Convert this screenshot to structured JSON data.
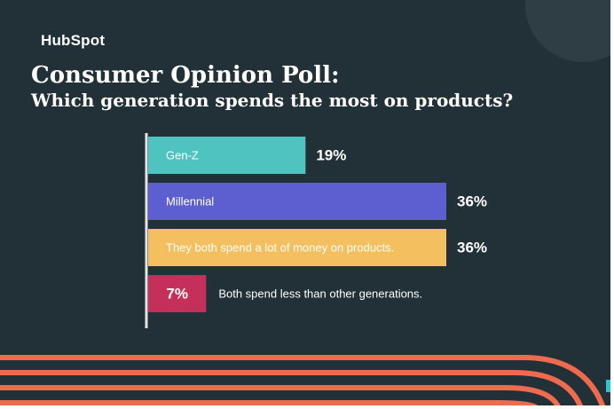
{
  "brand": {
    "logo_text": "HubSpot"
  },
  "header": {
    "title": "Consumer Opinion Poll:",
    "subtitle": "Which generation spends the most on products?"
  },
  "colors": {
    "background": "#223137",
    "accent_orange": "#ee6c4d",
    "bar_label_text": "#ffffff"
  },
  "chart_data": {
    "type": "bar",
    "orientation": "horizontal",
    "title": "Consumer Opinion Poll:",
    "subtitle": "Which generation spends the most on products?",
    "categories": [
      "Gen-Z",
      "Millennial",
      "They both spend a lot of money on products.",
      "Both spend less than other generations."
    ],
    "values": [
      19,
      36,
      36,
      7
    ],
    "value_labels": [
      "19%",
      "36%",
      "36%",
      "7%"
    ],
    "bar_colors": [
      "#4fc3bf",
      "#5d5fd0",
      "#f4c05f",
      "#c4305a"
    ],
    "xlabel": "",
    "ylabel": "",
    "xlim": [
      0,
      36
    ],
    "grid": false,
    "legend": "none"
  }
}
